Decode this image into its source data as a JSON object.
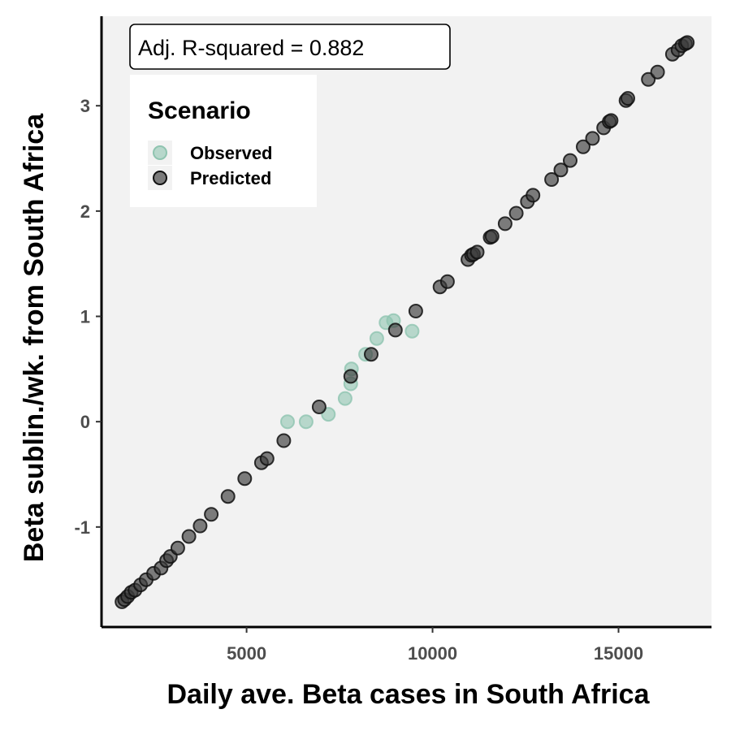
{
  "chart_data": {
    "type": "scatter",
    "xlabel": "Daily ave. Beta cases in South Africa",
    "ylabel": "Beta sublin./wk. from South Africa",
    "xlim": [
      1100,
      17500
    ],
    "ylim": [
      -1.95,
      3.85
    ],
    "x_ticks": [
      5000,
      10000,
      15000
    ],
    "x_tick_labels": [
      "5000",
      "10000",
      "15000"
    ],
    "y_ticks": [
      -1,
      0,
      1,
      2,
      3
    ],
    "y_tick_labels": [
      "-1",
      "0",
      "1",
      "2",
      "3"
    ],
    "grid": false,
    "background": "#f2f2f2",
    "annotation": "Adj. R-squared = 0.882",
    "legend": {
      "title": "Scenario",
      "position": "top-left",
      "entries": [
        "Observed",
        "Predicted"
      ]
    },
    "series": [
      {
        "name": "Observed",
        "color": "#8fc4b0",
        "points": [
          [
            6100,
            0.0
          ],
          [
            6600,
            0.0
          ],
          [
            7200,
            0.07
          ],
          [
            7650,
            0.22
          ],
          [
            7800,
            0.36
          ],
          [
            7820,
            0.5
          ],
          [
            8200,
            0.64
          ],
          [
            8500,
            0.79
          ],
          [
            8750,
            0.94
          ],
          [
            8950,
            0.96
          ],
          [
            9450,
            0.86
          ]
        ]
      },
      {
        "name": "Predicted",
        "color": "#3a3a3a",
        "points": [
          [
            1650,
            -1.71
          ],
          [
            1720,
            -1.69
          ],
          [
            1800,
            -1.66
          ],
          [
            1900,
            -1.62
          ],
          [
            2000,
            -1.6
          ],
          [
            2150,
            -1.55
          ],
          [
            2300,
            -1.5
          ],
          [
            2500,
            -1.44
          ],
          [
            2700,
            -1.39
          ],
          [
            2850,
            -1.32
          ],
          [
            2950,
            -1.28
          ],
          [
            3150,
            -1.2
          ],
          [
            3450,
            -1.09
          ],
          [
            3750,
            -0.99
          ],
          [
            4050,
            -0.88
          ],
          [
            4500,
            -0.71
          ],
          [
            4950,
            -0.54
          ],
          [
            5400,
            -0.39
          ],
          [
            5550,
            -0.35
          ],
          [
            6000,
            -0.18
          ],
          [
            6950,
            0.14
          ],
          [
            7800,
            0.43
          ],
          [
            8350,
            0.64
          ],
          [
            9000,
            0.87
          ],
          [
            9550,
            1.05
          ],
          [
            10200,
            1.28
          ],
          [
            10400,
            1.33
          ],
          [
            10950,
            1.54
          ],
          [
            11050,
            1.58
          ],
          [
            11100,
            1.59
          ],
          [
            11200,
            1.61
          ],
          [
            11550,
            1.75
          ],
          [
            11600,
            1.76
          ],
          [
            11950,
            1.88
          ],
          [
            12250,
            1.98
          ],
          [
            12550,
            2.09
          ],
          [
            12700,
            2.15
          ],
          [
            13200,
            2.3
          ],
          [
            13450,
            2.39
          ],
          [
            13700,
            2.48
          ],
          [
            14050,
            2.61
          ],
          [
            14300,
            2.69
          ],
          [
            14600,
            2.79
          ],
          [
            14750,
            2.85
          ],
          [
            14800,
            2.86
          ],
          [
            15200,
            3.05
          ],
          [
            15250,
            3.07
          ],
          [
            15800,
            3.25
          ],
          [
            16050,
            3.32
          ],
          [
            16450,
            3.49
          ],
          [
            16600,
            3.53
          ],
          [
            16700,
            3.57
          ],
          [
            16800,
            3.59
          ],
          [
            16850,
            3.6
          ]
        ]
      }
    ]
  }
}
